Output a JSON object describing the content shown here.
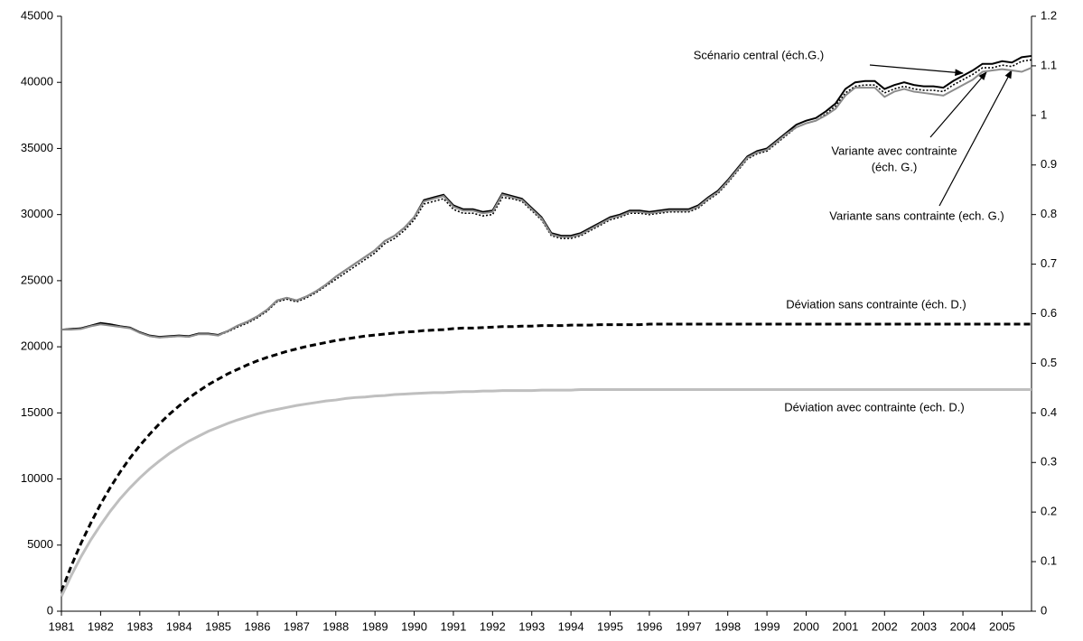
{
  "chart_data": {
    "type": "line",
    "x": [
      1981,
      1981.25,
      1981.5,
      1981.75,
      1982,
      1982.25,
      1982.5,
      1982.75,
      1983,
      1983.25,
      1983.5,
      1983.75,
      1984,
      1984.25,
      1984.5,
      1984.75,
      1985,
      1985.25,
      1985.5,
      1985.75,
      1986,
      1986.25,
      1986.5,
      1986.75,
      1987,
      1987.25,
      1987.5,
      1987.75,
      1988,
      1988.25,
      1988.5,
      1988.75,
      1989,
      1989.25,
      1989.5,
      1989.75,
      1990,
      1990.25,
      1990.5,
      1990.75,
      1991,
      1991.25,
      1991.5,
      1991.75,
      1992,
      1992.25,
      1992.5,
      1992.75,
      1993,
      1993.25,
      1993.5,
      1993.75,
      1994,
      1994.25,
      1994.5,
      1994.75,
      1995,
      1995.25,
      1995.5,
      1995.75,
      1996,
      1996.25,
      1996.5,
      1996.75,
      1997,
      1997.25,
      1997.5,
      1997.75,
      1998,
      1998.25,
      1998.5,
      1998.75,
      1999,
      1999.25,
      1999.5,
      1999.75,
      2000,
      2000.25,
      2000.5,
      2000.75,
      2001,
      2001.25,
      2001.5,
      2001.75,
      2002,
      2002.25,
      2002.5,
      2002.75,
      2003,
      2003.25,
      2003.5,
      2003.75,
      2004,
      2004.25,
      2004.5,
      2004.75,
      2005,
      2005.25,
      2005.5,
      2005.75
    ],
    "xlim": [
      1981,
      2005.75
    ],
    "xticks": [
      1981,
      1982,
      1983,
      1984,
      1985,
      1986,
      1987,
      1988,
      1989,
      1990,
      1991,
      1992,
      1993,
      1994,
      1995,
      1996,
      1997,
      1998,
      1999,
      2000,
      2001,
      2002,
      2003,
      2004,
      2005
    ],
    "ylim": [
      0,
      45000
    ],
    "yticks": [
      0,
      5000,
      10000,
      15000,
      20000,
      25000,
      30000,
      35000,
      40000,
      45000
    ],
    "y2lim": [
      0,
      1.2
    ],
    "y2ticks": [
      0,
      0.1,
      0.2,
      0.3,
      0.4,
      0.5,
      0.6,
      0.7,
      0.8,
      0.9,
      1,
      1.1,
      1.2
    ],
    "series": [
      {
        "color": "#000000",
        "style": "solid",
        "values": [
          21300,
          21350,
          21400,
          21600,
          21800,
          21700,
          21550,
          21450,
          21100,
          20850,
          20750,
          20800,
          20850,
          20800,
          21000,
          21000,
          20900,
          21200,
          21600,
          21900,
          22300,
          22800,
          23500,
          23700,
          23500,
          23800,
          24200,
          24700,
          25300,
          25800,
          26300,
          26800,
          27300,
          28000,
          28400,
          29000,
          29800,
          31100,
          31300,
          31500,
          30700,
          30400,
          30400,
          30200,
          30300,
          31600,
          31400,
          31200,
          30500,
          29800,
          28600,
          28400,
          28400,
          28600,
          29000,
          29400,
          29800,
          30000,
          30300,
          30300,
          30200,
          30300,
          30400,
          30400,
          30400,
          30700,
          31300,
          31800,
          32600,
          33500,
          34400,
          34800,
          35000,
          35600,
          36200,
          36800,
          37100,
          37300,
          37800,
          38400,
          39500,
          40000,
          40100,
          40100,
          39500,
          39800,
          40000,
          39800,
          39700,
          39700,
          39600,
          40100,
          40500,
          40900,
          41400,
          41400,
          41600,
          41500,
          41900,
          42000
        ]
      },
      {
        "color": "#000000",
        "style": "dotted",
        "values": [
          21300,
          21350,
          21400,
          21600,
          21800,
          21700,
          21550,
          21450,
          21050,
          20800,
          20700,
          20750,
          20800,
          20750,
          20950,
          20950,
          20850,
          21150,
          21500,
          21800,
          22200,
          22700,
          23400,
          23600,
          23400,
          23700,
          24100,
          24600,
          25100,
          25600,
          26100,
          26600,
          27100,
          27800,
          28200,
          28800,
          29600,
          30800,
          31000,
          31200,
          30400,
          30100,
          30100,
          29900,
          30000,
          31300,
          31200,
          31000,
          30300,
          29600,
          28400,
          28200,
          28200,
          28400,
          28800,
          29200,
          29600,
          29800,
          30100,
          30100,
          30000,
          30100,
          30200,
          30200,
          30200,
          30500,
          31100,
          31600,
          32400,
          33300,
          34200,
          34600,
          34800,
          35400,
          36000,
          36600,
          36900,
          37100,
          37600,
          38200,
          39200,
          39700,
          39800,
          39800,
          39200,
          39500,
          39700,
          39500,
          39400,
          39400,
          39300,
          39800,
          40200,
          40600,
          41100,
          41100,
          41300,
          41200,
          41600,
          41700
        ]
      },
      {
        "color": "#8c8c8c",
        "style": "solid",
        "values": [
          21300,
          21300,
          21350,
          21550,
          21700,
          21600,
          21500,
          21400,
          21050,
          20800,
          20700,
          20750,
          20800,
          20750,
          20950,
          20950,
          20850,
          21200,
          21600,
          21900,
          22300,
          22800,
          23500,
          23700,
          23500,
          23800,
          24200,
          24700,
          25300,
          25800,
          26300,
          26800,
          27300,
          28000,
          28400,
          29000,
          29800,
          31000,
          31200,
          31400,
          30600,
          30300,
          30300,
          30100,
          30200,
          31500,
          31300,
          31100,
          30400,
          29700,
          28500,
          28300,
          28300,
          28500,
          28900,
          29300,
          29700,
          29900,
          30200,
          30200,
          30100,
          30200,
          30300,
          30300,
          30300,
          30600,
          31200,
          31700,
          32500,
          33400,
          34300,
          34700,
          34900,
          35500,
          36100,
          36600,
          36900,
          37100,
          37500,
          38000,
          39000,
          39600,
          39600,
          39600,
          38900,
          39300,
          39500,
          39300,
          39200,
          39100,
          39000,
          39400,
          39800,
          40200,
          40800,
          40900,
          41000,
          40900,
          40800,
          41100
        ]
      },
      {
        "color": "#000000",
        "style": "dashed",
        "axis": "y2",
        "values": [
          0.04,
          0.091,
          0.137,
          0.178,
          0.216,
          0.25,
          0.281,
          0.309,
          0.334,
          0.357,
          0.378,
          0.397,
          0.414,
          0.43,
          0.444,
          0.457,
          0.468,
          0.479,
          0.488,
          0.497,
          0.505,
          0.512,
          0.518,
          0.524,
          0.529,
          0.534,
          0.538,
          0.542,
          0.546,
          0.549,
          0.552,
          0.555,
          0.557,
          0.559,
          0.561,
          0.563,
          0.564,
          0.566,
          0.567,
          0.568,
          0.57,
          0.571,
          0.571,
          0.572,
          0.573,
          0.574,
          0.574,
          0.575,
          0.575,
          0.576,
          0.576,
          0.576,
          0.577,
          0.577,
          0.577,
          0.578,
          0.578,
          0.578,
          0.578,
          0.578,
          0.579,
          0.579,
          0.579,
          0.579,
          0.579,
          0.579,
          0.579,
          0.579,
          0.579,
          0.579,
          0.579,
          0.579,
          0.579,
          0.579,
          0.579,
          0.579,
          0.579,
          0.579,
          0.579,
          0.579,
          0.579,
          0.579,
          0.579,
          0.579,
          0.579,
          0.579,
          0.579,
          0.579,
          0.579,
          0.579,
          0.579,
          0.579,
          0.579,
          0.579,
          0.579,
          0.579,
          0.579,
          0.579,
          0.579,
          0.579
        ]
      },
      {
        "color": "#bfbfbf",
        "style": "solid",
        "axis": "y2",
        "values": [
          0.03,
          0.072,
          0.11,
          0.144,
          0.174,
          0.202,
          0.227,
          0.249,
          0.269,
          0.287,
          0.303,
          0.318,
          0.331,
          0.343,
          0.353,
          0.363,
          0.371,
          0.379,
          0.386,
          0.392,
          0.398,
          0.403,
          0.407,
          0.411,
          0.415,
          0.418,
          0.421,
          0.424,
          0.426,
          0.429,
          0.431,
          0.432,
          0.434,
          0.435,
          0.437,
          0.438,
          0.439,
          0.44,
          0.441,
          0.441,
          0.442,
          0.443,
          0.443,
          0.444,
          0.444,
          0.445,
          0.445,
          0.445,
          0.445,
          0.446,
          0.446,
          0.446,
          0.446,
          0.447,
          0.447,
          0.447,
          0.447,
          0.447,
          0.447,
          0.447,
          0.447,
          0.447,
          0.447,
          0.447,
          0.447,
          0.447,
          0.447,
          0.447,
          0.447,
          0.447,
          0.447,
          0.447,
          0.447,
          0.447,
          0.447,
          0.447,
          0.447,
          0.447,
          0.447,
          0.447,
          0.447,
          0.447,
          0.447,
          0.447,
          0.447,
          0.447,
          0.447,
          0.447,
          0.447,
          0.447,
          0.447,
          0.447,
          0.447,
          0.447,
          0.447,
          0.447,
          0.447,
          0.447,
          0.447,
          0.447
        ]
      }
    ],
    "annotations": [
      {
        "lines": [
          "Scénario central (éch.G.)"
        ]
      },
      {
        "lines": [
          "Variante avec contrainte",
          "(éch. G.)"
        ]
      },
      {
        "lines": [
          "Variante sans contrainte (ech. G.)"
        ]
      },
      {
        "lines": [
          "Déviation sans contrainte (éch. D.)"
        ]
      },
      {
        "lines": [
          "Déviation avec contrainte (ech. D.)"
        ]
      }
    ]
  }
}
